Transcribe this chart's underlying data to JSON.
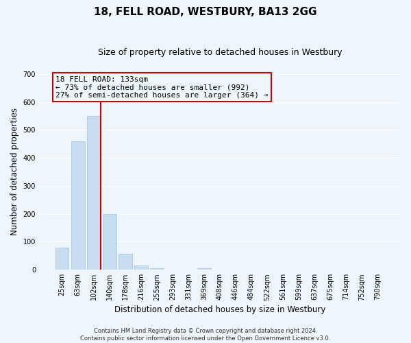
{
  "title": "18, FELL ROAD, WESTBURY, BA13 2GG",
  "subtitle": "Size of property relative to detached houses in Westbury",
  "xlabel": "Distribution of detached houses by size in Westbury",
  "ylabel": "Number of detached properties",
  "bar_labels": [
    "25sqm",
    "63sqm",
    "102sqm",
    "140sqm",
    "178sqm",
    "216sqm",
    "255sqm",
    "293sqm",
    "331sqm",
    "369sqm",
    "408sqm",
    "446sqm",
    "484sqm",
    "522sqm",
    "561sqm",
    "599sqm",
    "637sqm",
    "675sqm",
    "714sqm",
    "752sqm",
    "790sqm"
  ],
  "bar_heights": [
    80,
    460,
    550,
    200,
    58,
    15,
    5,
    0,
    0,
    5,
    0,
    0,
    0,
    0,
    0,
    0,
    0,
    0,
    0,
    0,
    0
  ],
  "bar_color": "#c8ddf0",
  "bar_edge_color": "#a8c8e8",
  "ylim": [
    0,
    700
  ],
  "yticks": [
    0,
    100,
    200,
    300,
    400,
    500,
    600,
    700
  ],
  "property_label": "18 FELL ROAD: 133sqm",
  "annotation_line1": "← 73% of detached houses are smaller (992)",
  "annotation_line2": "27% of semi-detached houses are larger (364) →",
  "vline_color": "#cc0000",
  "footer_line1": "Contains HM Land Registry data © Crown copyright and database right 2024.",
  "footer_line2": "Contains public sector information licensed under the Open Government Licence v3.0.",
  "background_color": "#eef5fb",
  "grid_color": "#ffffff",
  "title_fontsize": 11,
  "subtitle_fontsize": 9,
  "axis_label_fontsize": 8.5,
  "tick_fontsize": 7,
  "footer_fontsize": 6,
  "annot_fontsize": 8
}
